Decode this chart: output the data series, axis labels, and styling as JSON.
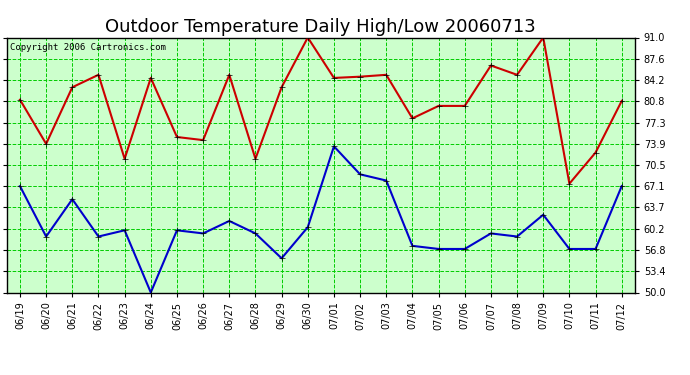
{
  "title": "Outdoor Temperature Daily High/Low 20060713",
  "copyright": "Copyright 2006 Cartronics.com",
  "dates": [
    "06/19",
    "06/20",
    "06/21",
    "06/22",
    "06/23",
    "06/24",
    "06/25",
    "06/26",
    "06/27",
    "06/28",
    "06/29",
    "06/30",
    "07/01",
    "07/02",
    "07/03",
    "07/04",
    "07/05",
    "07/06",
    "07/07",
    "07/08",
    "07/09",
    "07/10",
    "07/11",
    "07/12"
  ],
  "high": [
    81.0,
    73.9,
    83.0,
    85.0,
    71.5,
    84.5,
    75.0,
    74.5,
    85.0,
    71.5,
    83.0,
    91.0,
    84.5,
    84.7,
    85.0,
    78.0,
    80.0,
    80.0,
    86.5,
    85.0,
    91.0,
    67.5,
    72.5,
    80.8
  ],
  "low": [
    67.1,
    59.0,
    65.0,
    59.0,
    60.0,
    50.0,
    60.0,
    59.5,
    61.5,
    59.5,
    55.5,
    60.5,
    73.5,
    69.0,
    68.0,
    57.5,
    57.0,
    57.0,
    59.5,
    59.0,
    62.5,
    57.0,
    57.0,
    67.1
  ],
  "high_color": "#cc0000",
  "low_color": "#0000cc",
  "bg_color": "#ffffff",
  "plot_bg_color": "#ccffcc",
  "grid_color": "#00cc00",
  "border_color": "#000000",
  "ymin": 50.0,
  "ymax": 91.0,
  "yticks": [
    50.0,
    53.4,
    56.8,
    60.2,
    63.7,
    67.1,
    70.5,
    73.9,
    77.3,
    80.8,
    84.2,
    87.6,
    91.0
  ],
  "title_fontsize": 13,
  "copyright_fontsize": 6.5,
  "tick_fontsize": 7,
  "marker": "+",
  "marker_size": 5,
  "line_width": 1.5
}
